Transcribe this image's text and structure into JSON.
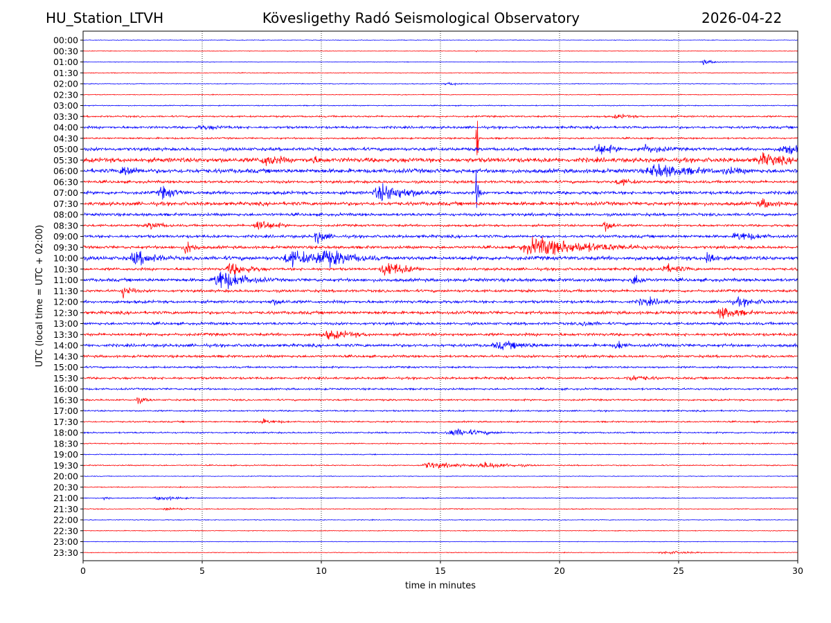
{
  "header": {
    "station": "HU_Station_LTVH",
    "observatory": "Kövesligethy Radó Seismological Observatory",
    "date": "2026-04-22"
  },
  "chart_data": {
    "type": "line",
    "title": "Kövesligethy Radó Seismological Observatory",
    "xlabel": "time in minutes",
    "ylabel": "UTC (local time = UTC + 02:00)",
    "xlim": [
      0,
      30
    ],
    "xticks": [
      0,
      5,
      10,
      15,
      20,
      25,
      30
    ],
    "vertical_gridlines": [
      5,
      10,
      15,
      20,
      25
    ],
    "series_colors": [
      "#0000ff",
      "#ff0000"
    ],
    "row_labels": [
      "00:00",
      "00:30",
      "01:00",
      "01:30",
      "02:00",
      "02:30",
      "03:00",
      "03:30",
      "04:00",
      "04:30",
      "05:00",
      "05:30",
      "06:00",
      "06:30",
      "07:00",
      "07:30",
      "08:00",
      "08:30",
      "09:00",
      "09:30",
      "10:00",
      "10:30",
      "11:00",
      "11:30",
      "12:00",
      "12:30",
      "13:00",
      "13:30",
      "14:00",
      "14:30",
      "15:00",
      "15:30",
      "16:00",
      "16:30",
      "17:00",
      "17:30",
      "18:00",
      "18:30",
      "19:00",
      "19:30",
      "20:00",
      "20:30",
      "21:00",
      "21:30",
      "22:00",
      "22:30",
      "23:00",
      "23:30"
    ],
    "noise_levels": [
      0.3,
      0.3,
      0.3,
      0.4,
      0.4,
      0.4,
      0.5,
      0.9,
      1.3,
      0.9,
      1.7,
      2.4,
      2.2,
      1.4,
      1.7,
      1.9,
      1.5,
      1.2,
      1.5,
      1.5,
      2.0,
      1.4,
      1.7,
      1.4,
      1.5,
      1.6,
      1.4,
      1.5,
      1.6,
      1.3,
      1.0,
      1.2,
      1.0,
      0.9,
      0.8,
      0.8,
      0.8,
      0.6,
      0.5,
      0.6,
      0.4,
      0.5,
      0.5,
      0.5,
      0.4,
      0.4,
      0.3,
      0.4
    ],
    "events": [
      {
        "row": 1,
        "t": 16.5,
        "amp": 4,
        "dur": 0.05
      },
      {
        "row": 2,
        "t": 26.0,
        "amp": 3,
        "dur": 0.6
      },
      {
        "row": 4,
        "t": 15.3,
        "amp": 2,
        "dur": 0.8
      },
      {
        "row": 7,
        "t": 22.4,
        "amp": 3,
        "dur": 1.0
      },
      {
        "row": 8,
        "t": 5.0,
        "amp": 3,
        "dur": 2.0
      },
      {
        "row": 9,
        "t": 16.5,
        "amp": 80,
        "dur": 0.05
      },
      {
        "row": 10,
        "t": 21.6,
        "amp": 8,
        "dur": 0.8
      },
      {
        "row": 10,
        "t": 23.5,
        "amp": 6,
        "dur": 1.2
      },
      {
        "row": 10,
        "t": 29.5,
        "amp": 7,
        "dur": 1.5
      },
      {
        "row": 11,
        "t": 7.6,
        "amp": 8,
        "dur": 1.0
      },
      {
        "row": 11,
        "t": 9.6,
        "amp": 6,
        "dur": 0.6
      },
      {
        "row": 11,
        "t": 28.5,
        "amp": 8,
        "dur": 1.5
      },
      {
        "row": 12,
        "t": 1.7,
        "amp": 8,
        "dur": 0.8
      },
      {
        "row": 12,
        "t": 24.0,
        "amp": 9,
        "dur": 2.0
      },
      {
        "row": 12,
        "t": 27.0,
        "amp": 5,
        "dur": 1.5
      },
      {
        "row": 13,
        "t": 22.5,
        "amp": 5,
        "dur": 0.8
      },
      {
        "row": 14,
        "t": 3.3,
        "amp": 8,
        "dur": 0.8
      },
      {
        "row": 14,
        "t": 12.5,
        "amp": 11,
        "dur": 1.5
      },
      {
        "row": 14,
        "t": 16.5,
        "amp": 26,
        "dur": 0.1
      },
      {
        "row": 15,
        "t": 28.5,
        "amp": 6,
        "dur": 1.0
      },
      {
        "row": 17,
        "t": 2.8,
        "amp": 5,
        "dur": 0.8
      },
      {
        "row": 17,
        "t": 7.3,
        "amp": 8,
        "dur": 0.8
      },
      {
        "row": 17,
        "t": 21.9,
        "amp": 7,
        "dur": 0.5
      },
      {
        "row": 18,
        "t": 9.8,
        "amp": 9,
        "dur": 0.5
      },
      {
        "row": 18,
        "t": 27.5,
        "amp": 6,
        "dur": 1.2
      },
      {
        "row": 19,
        "t": 4.3,
        "amp": 10,
        "dur": 0.4
      },
      {
        "row": 19,
        "t": 19.0,
        "amp": 11,
        "dur": 3.0
      },
      {
        "row": 20,
        "t": 2.2,
        "amp": 9,
        "dur": 1.2
      },
      {
        "row": 20,
        "t": 8.7,
        "amp": 10,
        "dur": 1.5
      },
      {
        "row": 20,
        "t": 10.0,
        "amp": 12,
        "dur": 1.5
      },
      {
        "row": 20,
        "t": 26.2,
        "amp": 11,
        "dur": 0.4
      },
      {
        "row": 21,
        "t": 6.2,
        "amp": 8,
        "dur": 1.0
      },
      {
        "row": 21,
        "t": 12.7,
        "amp": 10,
        "dur": 1.0
      },
      {
        "row": 21,
        "t": 24.4,
        "amp": 6,
        "dur": 1.0
      },
      {
        "row": 22,
        "t": 5.7,
        "amp": 13,
        "dur": 1.2
      },
      {
        "row": 22,
        "t": 23.1,
        "amp": 8,
        "dur": 0.5
      },
      {
        "row": 23,
        "t": 1.7,
        "amp": 9,
        "dur": 0.4
      },
      {
        "row": 24,
        "t": 8.0,
        "amp": 4,
        "dur": 1.0
      },
      {
        "row": 24,
        "t": 23.5,
        "amp": 5,
        "dur": 1.5
      },
      {
        "row": 24,
        "t": 27.5,
        "amp": 5,
        "dur": 1.5
      },
      {
        "row": 25,
        "t": 26.8,
        "amp": 8,
        "dur": 1.0
      },
      {
        "row": 26,
        "t": 21.0,
        "amp": 4,
        "dur": 0.8
      },
      {
        "row": 27,
        "t": 10.3,
        "amp": 6,
        "dur": 1.5
      },
      {
        "row": 28,
        "t": 17.5,
        "amp": 5,
        "dur": 2.0
      },
      {
        "row": 28,
        "t": 22.4,
        "amp": 7,
        "dur": 0.4
      },
      {
        "row": 31,
        "t": 23.0,
        "amp": 4,
        "dur": 1.2
      },
      {
        "row": 33,
        "t": 2.3,
        "amp": 4,
        "dur": 0.5
      },
      {
        "row": 35,
        "t": 7.5,
        "amp": 3,
        "dur": 1.0
      },
      {
        "row": 36,
        "t": 15.5,
        "amp": 5,
        "dur": 1.5
      },
      {
        "row": 39,
        "t": 14.5,
        "amp": 4,
        "dur": 1.5
      },
      {
        "row": 39,
        "t": 16.8,
        "amp": 4,
        "dur": 1.5
      },
      {
        "row": 42,
        "t": 0.9,
        "amp": 4,
        "dur": 0.2
      },
      {
        "row": 42,
        "t": 3.2,
        "amp": 3,
        "dur": 1.0
      },
      {
        "row": 43,
        "t": 3.5,
        "amp": 2,
        "dur": 1.0
      },
      {
        "row": 47,
        "t": 24.5,
        "amp": 2,
        "dur": 1.5
      }
    ]
  }
}
